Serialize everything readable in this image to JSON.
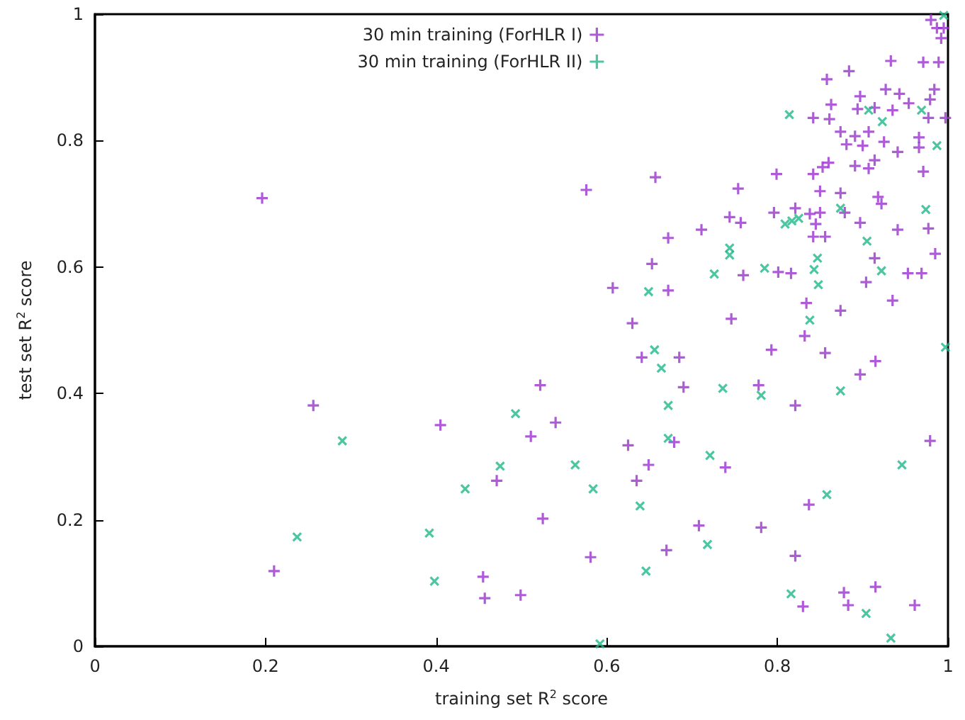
{
  "chart_data": {
    "type": "scatter",
    "xlabel": "training set R$^{2}$ score",
    "ylabel": "test set R$^{2}$ score",
    "xlim": [
      0,
      1
    ],
    "xticks": [
      0,
      0.2,
      0.4,
      0.6,
      0.8,
      1
    ],
    "ylim": [
      0,
      1
    ],
    "yticks": [
      0,
      0.2,
      0.4,
      0.6,
      0.8,
      1
    ],
    "grid": false,
    "legend": "top",
    "marker": "cross",
    "series": [
      {
        "name": "30 min training (ForHLR I)",
        "color": "#9a32cd",
        "x": [
          0.196,
          0.21,
          0.256,
          0.405,
          0.471,
          0.455,
          0.457,
          0.499,
          0.511,
          0.522,
          0.98,
          0.987,
          0.995,
          0.992,
          0.933,
          0.971,
          0.989,
          0.884,
          0.858,
          0.927,
          0.943,
          0.897,
          0.984,
          0.979,
          0.954,
          0.863,
          0.894,
          0.914,
          0.935,
          0.842,
          0.861,
          0.977,
          0.997,
          0.874,
          0.891,
          0.907,
          0.925,
          0.881,
          0.9,
          0.966,
          0.966,
          0.941,
          0.86,
          0.853,
          0.891,
          0.914,
          0.907,
          0.971,
          0.657,
          0.576,
          0.754,
          0.799,
          0.842,
          0.85,
          0.874,
          0.918,
          0.922,
          0.744,
          0.757,
          0.821,
          0.796,
          0.838,
          0.85,
          0.879,
          0.711,
          0.845,
          0.897,
          0.941,
          0.977,
          0.842,
          0.856,
          0.672,
          0.985,
          0.914,
          0.653,
          0.801,
          0.816,
          0.76,
          0.953,
          0.969,
          0.904,
          0.607,
          0.672,
          0.834,
          0.935,
          0.874,
          0.63,
          0.746,
          0.832,
          0.641,
          0.685,
          0.793,
          0.856,
          0.915,
          0.897,
          0.69,
          0.778,
          0.821,
          0.54,
          0.625,
          0.679,
          0.979,
          0.649,
          0.739,
          0.635,
          0.837,
          0.525,
          0.708,
          0.781,
          0.67,
          0.581,
          0.821,
          0.878,
          0.915,
          0.83,
          0.883,
          0.961
        ],
        "values": [
          0.709,
          0.119,
          0.381,
          0.35,
          0.262,
          0.11,
          0.076,
          0.081,
          0.332,
          0.413,
          0.991,
          0.978,
          0.978,
          0.962,
          0.926,
          0.924,
          0.924,
          0.91,
          0.897,
          0.881,
          0.874,
          0.87,
          0.881,
          0.865,
          0.859,
          0.857,
          0.85,
          0.852,
          0.848,
          0.836,
          0.834,
          0.836,
          0.836,
          0.814,
          0.807,
          0.814,
          0.798,
          0.794,
          0.792,
          0.805,
          0.789,
          0.782,
          0.765,
          0.758,
          0.76,
          0.769,
          0.756,
          0.751,
          0.742,
          0.722,
          0.724,
          0.747,
          0.747,
          0.72,
          0.717,
          0.711,
          0.7,
          0.679,
          0.67,
          0.693,
          0.686,
          0.684,
          0.686,
          0.686,
          0.659,
          0.668,
          0.67,
          0.659,
          0.661,
          0.648,
          0.648,
          0.646,
          0.621,
          0.614,
          0.605,
          0.592,
          0.59,
          0.587,
          0.59,
          0.59,
          0.576,
          0.567,
          0.563,
          0.543,
          0.547,
          0.531,
          0.511,
          0.518,
          0.491,
          0.457,
          0.457,
          0.469,
          0.464,
          0.451,
          0.43,
          0.41,
          0.413,
          0.381,
          0.354,
          0.318,
          0.323,
          0.325,
          0.287,
          0.283,
          0.262,
          0.224,
          0.202,
          0.191,
          0.188,
          0.152,
          0.141,
          0.143,
          0.085,
          0.094,
          0.063,
          0.065,
          0.065
        ]
      },
      {
        "name": "30 min training (ForHLR II)",
        "color": "#1fb88a",
        "x": [
          0.29,
          0.237,
          0.392,
          0.398,
          0.434,
          0.475,
          0.493,
          0.814,
          0.907,
          0.923,
          0.969,
          0.987,
          0.995,
          0.874,
          0.974,
          0.809,
          0.817,
          0.825,
          0.744,
          0.744,
          0.905,
          0.847,
          0.843,
          0.785,
          0.922,
          0.726,
          0.848,
          0.649,
          0.838,
          0.656,
          0.664,
          0.997,
          0.736,
          0.781,
          0.874,
          0.672,
          0.672,
          0.721,
          0.563,
          0.946,
          0.584,
          0.639,
          0.858,
          0.718,
          0.646,
          0.816,
          0.904,
          0.933,
          0.592
        ],
        "values": [
          0.325,
          0.173,
          0.179,
          0.103,
          0.249,
          0.285,
          0.368,
          0.841,
          0.848,
          0.83,
          0.848,
          0.792,
          0.998,
          0.693,
          0.691,
          0.668,
          0.673,
          0.677,
          0.63,
          0.619,
          0.641,
          0.614,
          0.596,
          0.598,
          0.594,
          0.589,
          0.572,
          0.561,
          0.516,
          0.469,
          0.44,
          0.473,
          0.408,
          0.397,
          0.404,
          0.381,
          0.329,
          0.302,
          0.287,
          0.287,
          0.249,
          0.222,
          0.24,
          0.161,
          0.119,
          0.083,
          0.052,
          0.013,
          0.004
        ]
      }
    ]
  }
}
